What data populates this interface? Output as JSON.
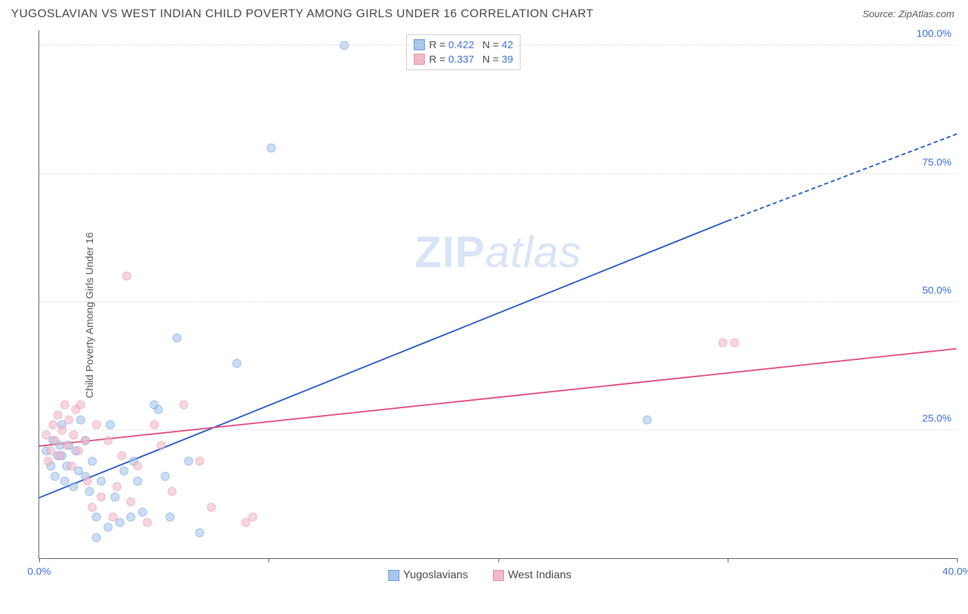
{
  "header": {
    "title": "YUGOSLAVIAN VS WEST INDIAN CHILD POVERTY AMONG GIRLS UNDER 16 CORRELATION CHART",
    "source_prefix": "Source: ",
    "source_name": "ZipAtlas.com"
  },
  "ylabel": "Child Poverty Among Girls Under 16",
  "watermark": {
    "bold": "ZIP",
    "rest": "atlas"
  },
  "chart": {
    "type": "scatter",
    "xlim": [
      0,
      40
    ],
    "ylim": [
      0,
      103
    ],
    "x_ticks": [
      0,
      10,
      20,
      30,
      40
    ],
    "x_tick_labels": [
      "0.0%",
      "",
      "",
      "",
      "40.0%"
    ],
    "y_ticks": [
      25,
      50,
      75,
      100
    ],
    "y_tick_labels": [
      "25.0%",
      "50.0%",
      "75.0%",
      "100.0%"
    ],
    "grid_color": "#dddddd",
    "axis_color": "#555555",
    "background_color": "#ffffff",
    "marker_radius": 7,
    "marker_opacity": 0.6,
    "series": [
      {
        "name": "Yugoslavians",
        "fill": "#a9c6ee",
        "stroke": "#5b8fd6",
        "line_color": "#2456c6",
        "R": "0.422",
        "N": "42",
        "trend": {
          "x1": 0,
          "y1": 12,
          "x2": 30,
          "y2": 66,
          "dash_x2": 40,
          "dash_y2": 83
        },
        "points": [
          [
            0.3,
            21
          ],
          [
            0.5,
            18
          ],
          [
            0.6,
            23
          ],
          [
            0.7,
            16
          ],
          [
            0.8,
            20
          ],
          [
            0.9,
            22
          ],
          [
            1.0,
            26
          ],
          [
            1.0,
            20
          ],
          [
            1.1,
            15
          ],
          [
            1.2,
            18
          ],
          [
            1.3,
            22
          ],
          [
            1.5,
            14
          ],
          [
            1.6,
            21
          ],
          [
            1.7,
            17
          ],
          [
            1.8,
            27
          ],
          [
            2.0,
            16
          ],
          [
            2.0,
            23
          ],
          [
            2.2,
            13
          ],
          [
            2.3,
            19
          ],
          [
            2.5,
            4
          ],
          [
            2.5,
            8
          ],
          [
            2.7,
            15
          ],
          [
            3.0,
            6
          ],
          [
            3.1,
            26
          ],
          [
            3.3,
            12
          ],
          [
            3.5,
            7
          ],
          [
            3.7,
            17
          ],
          [
            4.0,
            8
          ],
          [
            4.1,
            19
          ],
          [
            4.3,
            15
          ],
          [
            4.5,
            9
          ],
          [
            5.0,
            30
          ],
          [
            5.2,
            29
          ],
          [
            5.5,
            16
          ],
          [
            5.7,
            8
          ],
          [
            6.0,
            43
          ],
          [
            6.5,
            19
          ],
          [
            7.0,
            5
          ],
          [
            8.6,
            38
          ],
          [
            10.1,
            80
          ],
          [
            13.3,
            100
          ],
          [
            26.5,
            27
          ]
        ]
      },
      {
        "name": "West Indians",
        "fill": "#f3b9c9",
        "stroke": "#e089a4",
        "line_color": "#e04a7a",
        "R": "0.337",
        "N": "39",
        "trend": {
          "x1": 0,
          "y1": 22,
          "x2": 40,
          "y2": 41,
          "dash_x2": 40,
          "dash_y2": 41
        },
        "points": [
          [
            0.3,
            24
          ],
          [
            0.4,
            19
          ],
          [
            0.5,
            21
          ],
          [
            0.6,
            26
          ],
          [
            0.7,
            23
          ],
          [
            0.8,
            28
          ],
          [
            0.9,
            20
          ],
          [
            1.0,
            25
          ],
          [
            1.1,
            30
          ],
          [
            1.2,
            22
          ],
          [
            1.3,
            27
          ],
          [
            1.4,
            18
          ],
          [
            1.5,
            24
          ],
          [
            1.6,
            29
          ],
          [
            1.7,
            21
          ],
          [
            1.8,
            30
          ],
          [
            2.0,
            23
          ],
          [
            2.1,
            15
          ],
          [
            2.3,
            10
          ],
          [
            2.5,
            26
          ],
          [
            2.7,
            12
          ],
          [
            3.0,
            23
          ],
          [
            3.2,
            8
          ],
          [
            3.4,
            14
          ],
          [
            3.6,
            20
          ],
          [
            3.8,
            55
          ],
          [
            4.0,
            11
          ],
          [
            4.3,
            18
          ],
          [
            4.7,
            7
          ],
          [
            5.0,
            26
          ],
          [
            5.3,
            22
          ],
          [
            5.8,
            13
          ],
          [
            6.3,
            30
          ],
          [
            7.0,
            19
          ],
          [
            7.5,
            10
          ],
          [
            9.0,
            7
          ],
          [
            9.3,
            8
          ],
          [
            29.8,
            42
          ],
          [
            30.3,
            42
          ]
        ]
      }
    ]
  },
  "legend_top": {
    "labels": {
      "R": "R =",
      "N": "N ="
    }
  },
  "legend_bottom": {
    "items": [
      "Yugoslavians",
      "West Indians"
    ]
  }
}
